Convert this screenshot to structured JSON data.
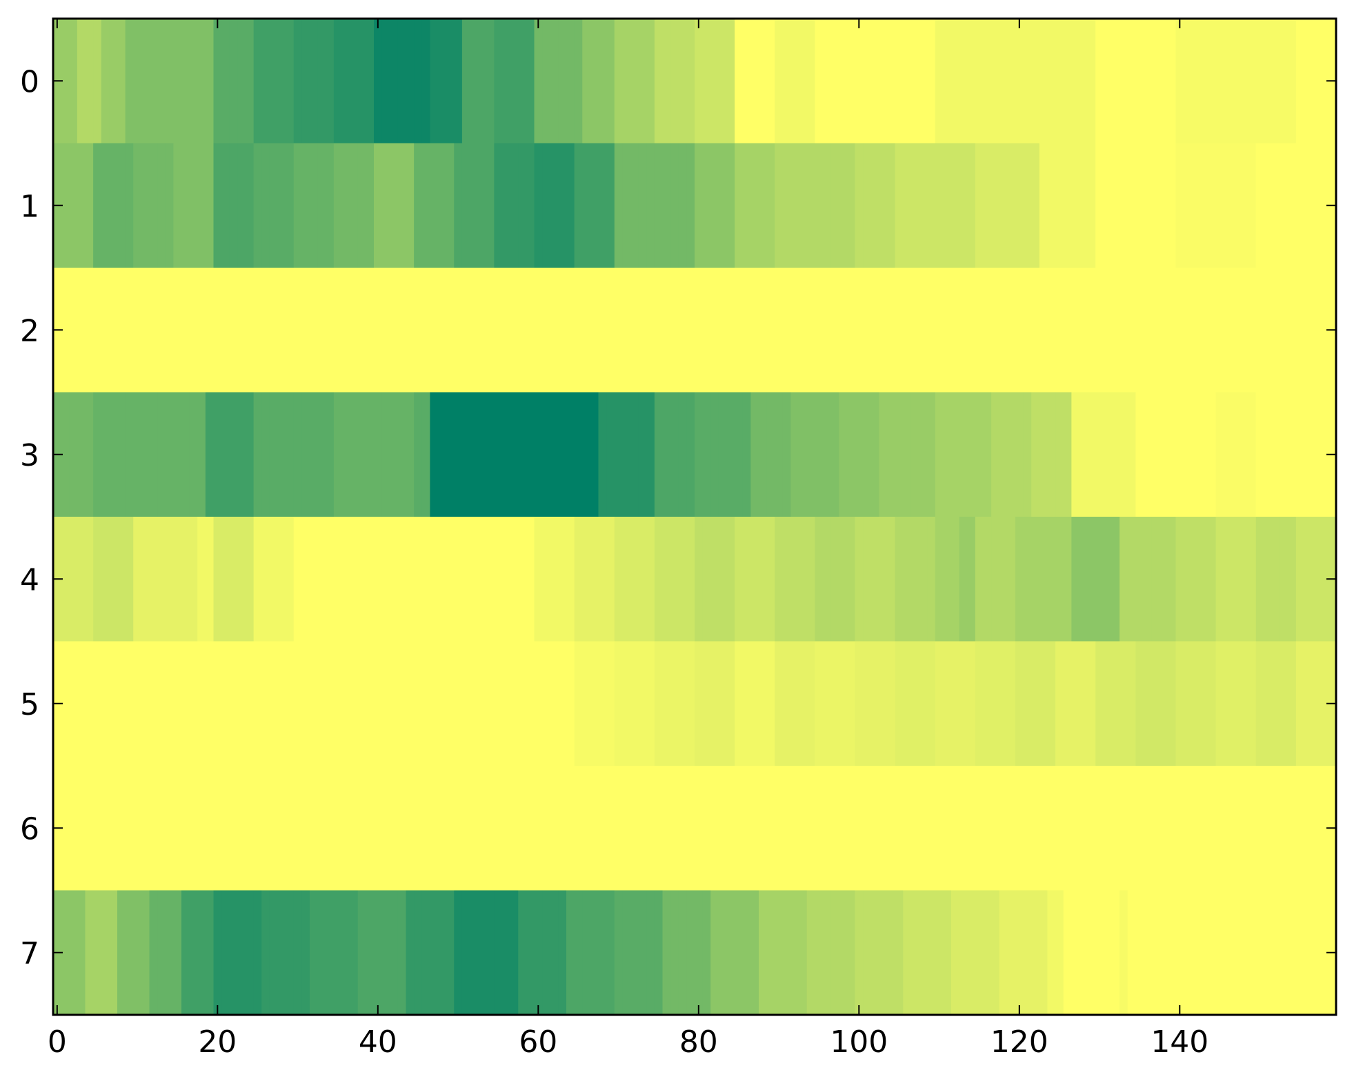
{
  "chart_data": {
    "type": "heatmap",
    "colormap": "summer_r",
    "color_low": "#ffff66",
    "color_high": "#008066",
    "n_columns": 160,
    "rows": [
      0,
      1,
      2,
      3,
      4,
      5,
      6,
      7
    ],
    "x_ticks": [
      0,
      20,
      40,
      60,
      80,
      100,
      120,
      140
    ],
    "y_ticks": [
      0,
      1,
      2,
      3,
      4,
      5,
      6,
      7
    ],
    "xlim": [
      -0.5,
      159.5
    ],
    "ylim": [
      7.5,
      -0.5
    ],
    "value_range": [
      0,
      1
    ],
    "grid": false,
    "row_segments": [
      [
        [
          0,
          0.4
        ],
        [
          3,
          0.3
        ],
        [
          6,
          0.4
        ],
        [
          9,
          0.5
        ],
        [
          15,
          0.5
        ],
        [
          20,
          0.65
        ],
        [
          25,
          0.75
        ],
        [
          30,
          0.8
        ],
        [
          35,
          0.85
        ],
        [
          40,
          0.95
        ],
        [
          47,
          0.9
        ],
        [
          51,
          0.7
        ],
        [
          55,
          0.75
        ],
        [
          60,
          0.55
        ],
        [
          66,
          0.45
        ],
        [
          70,
          0.35
        ],
        [
          75,
          0.25
        ],
        [
          80,
          0.2
        ],
        [
          85,
          0.0
        ],
        [
          90,
          0.05
        ],
        [
          95,
          0.0
        ],
        [
          110,
          0.05
        ],
        [
          130,
          0.0
        ],
        [
          140,
          0.03
        ],
        [
          155,
          0.0
        ]
      ],
      [
        [
          0,
          0.45
        ],
        [
          5,
          0.6
        ],
        [
          10,
          0.55
        ],
        [
          15,
          0.5
        ],
        [
          20,
          0.7
        ],
        [
          25,
          0.65
        ],
        [
          30,
          0.6
        ],
        [
          35,
          0.55
        ],
        [
          40,
          0.45
        ],
        [
          45,
          0.6
        ],
        [
          50,
          0.7
        ],
        [
          55,
          0.8
        ],
        [
          60,
          0.85
        ],
        [
          65,
          0.75
        ],
        [
          70,
          0.55
        ],
        [
          75,
          0.55
        ],
        [
          80,
          0.45
        ],
        [
          85,
          0.35
        ],
        [
          90,
          0.3
        ],
        [
          95,
          0.3
        ],
        [
          100,
          0.25
        ],
        [
          105,
          0.2
        ],
        [
          110,
          0.2
        ],
        [
          115,
          0.15
        ],
        [
          120,
          0.15
        ],
        [
          123,
          0.05
        ],
        [
          130,
          0.0
        ],
        [
          140,
          0.02
        ],
        [
          150,
          0.0
        ]
      ],
      [
        [
          0,
          0.0
        ]
      ],
      [
        [
          0,
          0.55
        ],
        [
          5,
          0.6
        ],
        [
          10,
          0.6
        ],
        [
          15,
          0.6
        ],
        [
          19,
          0.75
        ],
        [
          25,
          0.65
        ],
        [
          30,
          0.65
        ],
        [
          35,
          0.6
        ],
        [
          40,
          0.6
        ],
        [
          45,
          0.65
        ],
        [
          47,
          1.0
        ],
        [
          68,
          0.85
        ],
        [
          75,
          0.7
        ],
        [
          80,
          0.65
        ],
        [
          87,
          0.55
        ],
        [
          92,
          0.5
        ],
        [
          98,
          0.45
        ],
        [
          103,
          0.4
        ],
        [
          110,
          0.35
        ],
        [
          117,
          0.3
        ],
        [
          122,
          0.25
        ],
        [
          127,
          0.05
        ],
        [
          135,
          0.0
        ],
        [
          145,
          0.02
        ],
        [
          150,
          0.0
        ]
      ],
      [
        [
          0,
          0.15
        ],
        [
          5,
          0.2
        ],
        [
          10,
          0.1
        ],
        [
          18,
          0.05
        ],
        [
          20,
          0.15
        ],
        [
          25,
          0.05
        ],
        [
          30,
          0.0
        ],
        [
          60,
          0.05
        ],
        [
          65,
          0.1
        ],
        [
          70,
          0.15
        ],
        [
          75,
          0.2
        ],
        [
          80,
          0.25
        ],
        [
          85,
          0.2
        ],
        [
          90,
          0.25
        ],
        [
          95,
          0.3
        ],
        [
          100,
          0.25
        ],
        [
          105,
          0.3
        ],
        [
          110,
          0.35
        ],
        [
          113,
          0.4
        ],
        [
          115,
          0.3
        ],
        [
          120,
          0.35
        ],
        [
          127,
          0.45
        ],
        [
          133,
          0.3
        ],
        [
          140,
          0.25
        ],
        [
          145,
          0.2
        ],
        [
          150,
          0.25
        ],
        [
          155,
          0.2
        ]
      ],
      [
        [
          0,
          0.0
        ],
        [
          65,
          0.03
        ],
        [
          70,
          0.05
        ],
        [
          75,
          0.08
        ],
        [
          80,
          0.1
        ],
        [
          85,
          0.05
        ],
        [
          90,
          0.1
        ],
        [
          95,
          0.08
        ],
        [
          100,
          0.1
        ],
        [
          105,
          0.12
        ],
        [
          110,
          0.1
        ],
        [
          115,
          0.12
        ],
        [
          120,
          0.15
        ],
        [
          125,
          0.1
        ],
        [
          130,
          0.15
        ],
        [
          135,
          0.18
        ],
        [
          140,
          0.15
        ],
        [
          145,
          0.12
        ],
        [
          150,
          0.15
        ],
        [
          155,
          0.1
        ]
      ],
      [
        [
          0,
          0.0
        ]
      ],
      [
        [
          0,
          0.45
        ],
        [
          4,
          0.35
        ],
        [
          8,
          0.5
        ],
        [
          12,
          0.6
        ],
        [
          16,
          0.75
        ],
        [
          20,
          0.85
        ],
        [
          26,
          0.8
        ],
        [
          32,
          0.75
        ],
        [
          38,
          0.7
        ],
        [
          44,
          0.8
        ],
        [
          50,
          0.9
        ],
        [
          58,
          0.8
        ],
        [
          64,
          0.7
        ],
        [
          70,
          0.65
        ],
        [
          76,
          0.55
        ],
        [
          82,
          0.45
        ],
        [
          88,
          0.35
        ],
        [
          94,
          0.3
        ],
        [
          100,
          0.25
        ],
        [
          106,
          0.2
        ],
        [
          112,
          0.15
        ],
        [
          118,
          0.1
        ],
        [
          124,
          0.05
        ],
        [
          126,
          0.0
        ],
        [
          133,
          0.03
        ],
        [
          134,
          0.0
        ]
      ]
    ]
  }
}
